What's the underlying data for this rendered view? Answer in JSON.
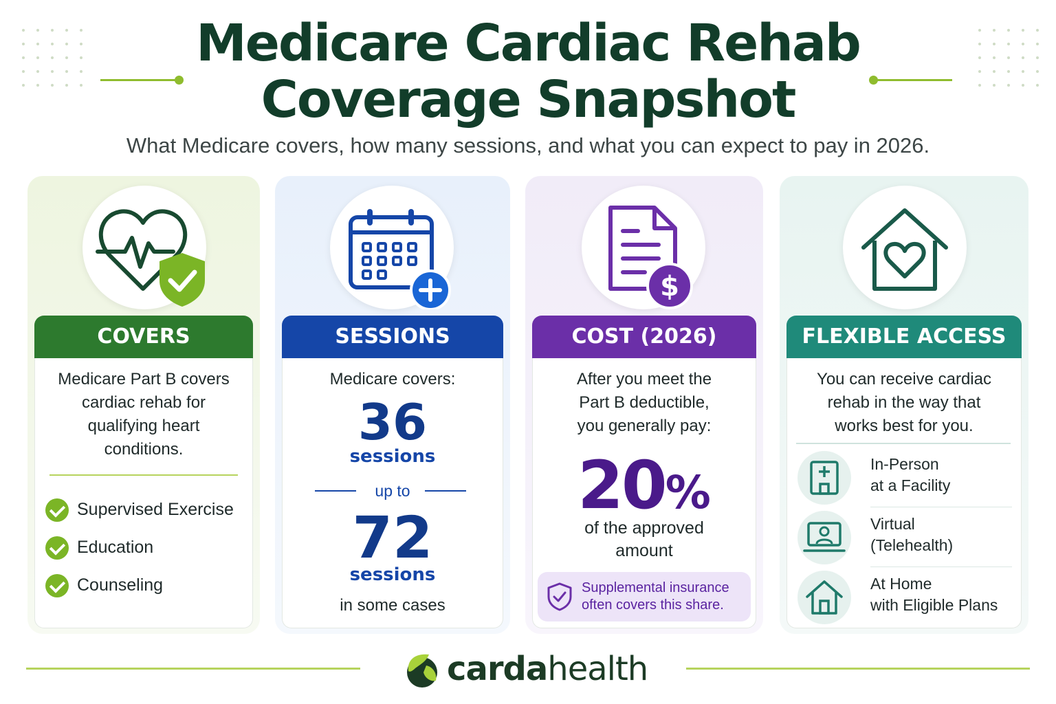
{
  "title_line1": "Medicare Cardiac Rehab",
  "title_line2": "Coverage Snapshot",
  "subtitle": "What Medicare covers, how many sessions, and what you can expect to pay in 2026.",
  "colors": {
    "covers": "#2d7a2e",
    "sessions": "#1546a8",
    "cost": "#6b2fa8",
    "access": "#1f8a7a",
    "accent_green": "#8fbc2e"
  },
  "covers": {
    "icon": "heart-shield-icon",
    "header": "COVERS",
    "text": [
      "Medicare Part B covers",
      "cardiac rehab for",
      "qualifying heart",
      "conditions."
    ],
    "items": [
      "Supervised Exercise",
      "Education",
      "Counseling"
    ]
  },
  "sessions": {
    "icon": "calendar-plus-icon",
    "header": "SESSIONS",
    "intro": "Medicare covers:",
    "base_number": "36",
    "base_label": "sessions",
    "up_to": "up to",
    "max_number": "72",
    "max_label": "sessions",
    "note": "in some cases"
  },
  "cost": {
    "icon": "document-dollar-icon",
    "header": "COST (2026)",
    "text": [
      "After you meet the",
      "Part B deductible,",
      "you generally pay:"
    ],
    "percent": "20",
    "percent_sign": "%",
    "percent_text": [
      "of the approved",
      "amount"
    ],
    "insurance_note": [
      "Supplemental insurance",
      "often covers this share."
    ]
  },
  "access": {
    "icon": "house-heart-icon",
    "header": "FLEXIBLE ACCESS",
    "text": [
      "You can receive cardiac",
      "rehab in the way that",
      "works best for you."
    ],
    "options": [
      {
        "icon": "hospital-icon",
        "line1": "In-Person",
        "line2": "at a Facility"
      },
      {
        "icon": "laptop-user-icon",
        "line1": "Virtual",
        "line2": "(Telehealth)"
      },
      {
        "icon": "home-icon",
        "line1": "At Home",
        "line2": "with Eligible Plans"
      }
    ]
  },
  "brand": {
    "bold": "carda",
    "regular": "health"
  }
}
